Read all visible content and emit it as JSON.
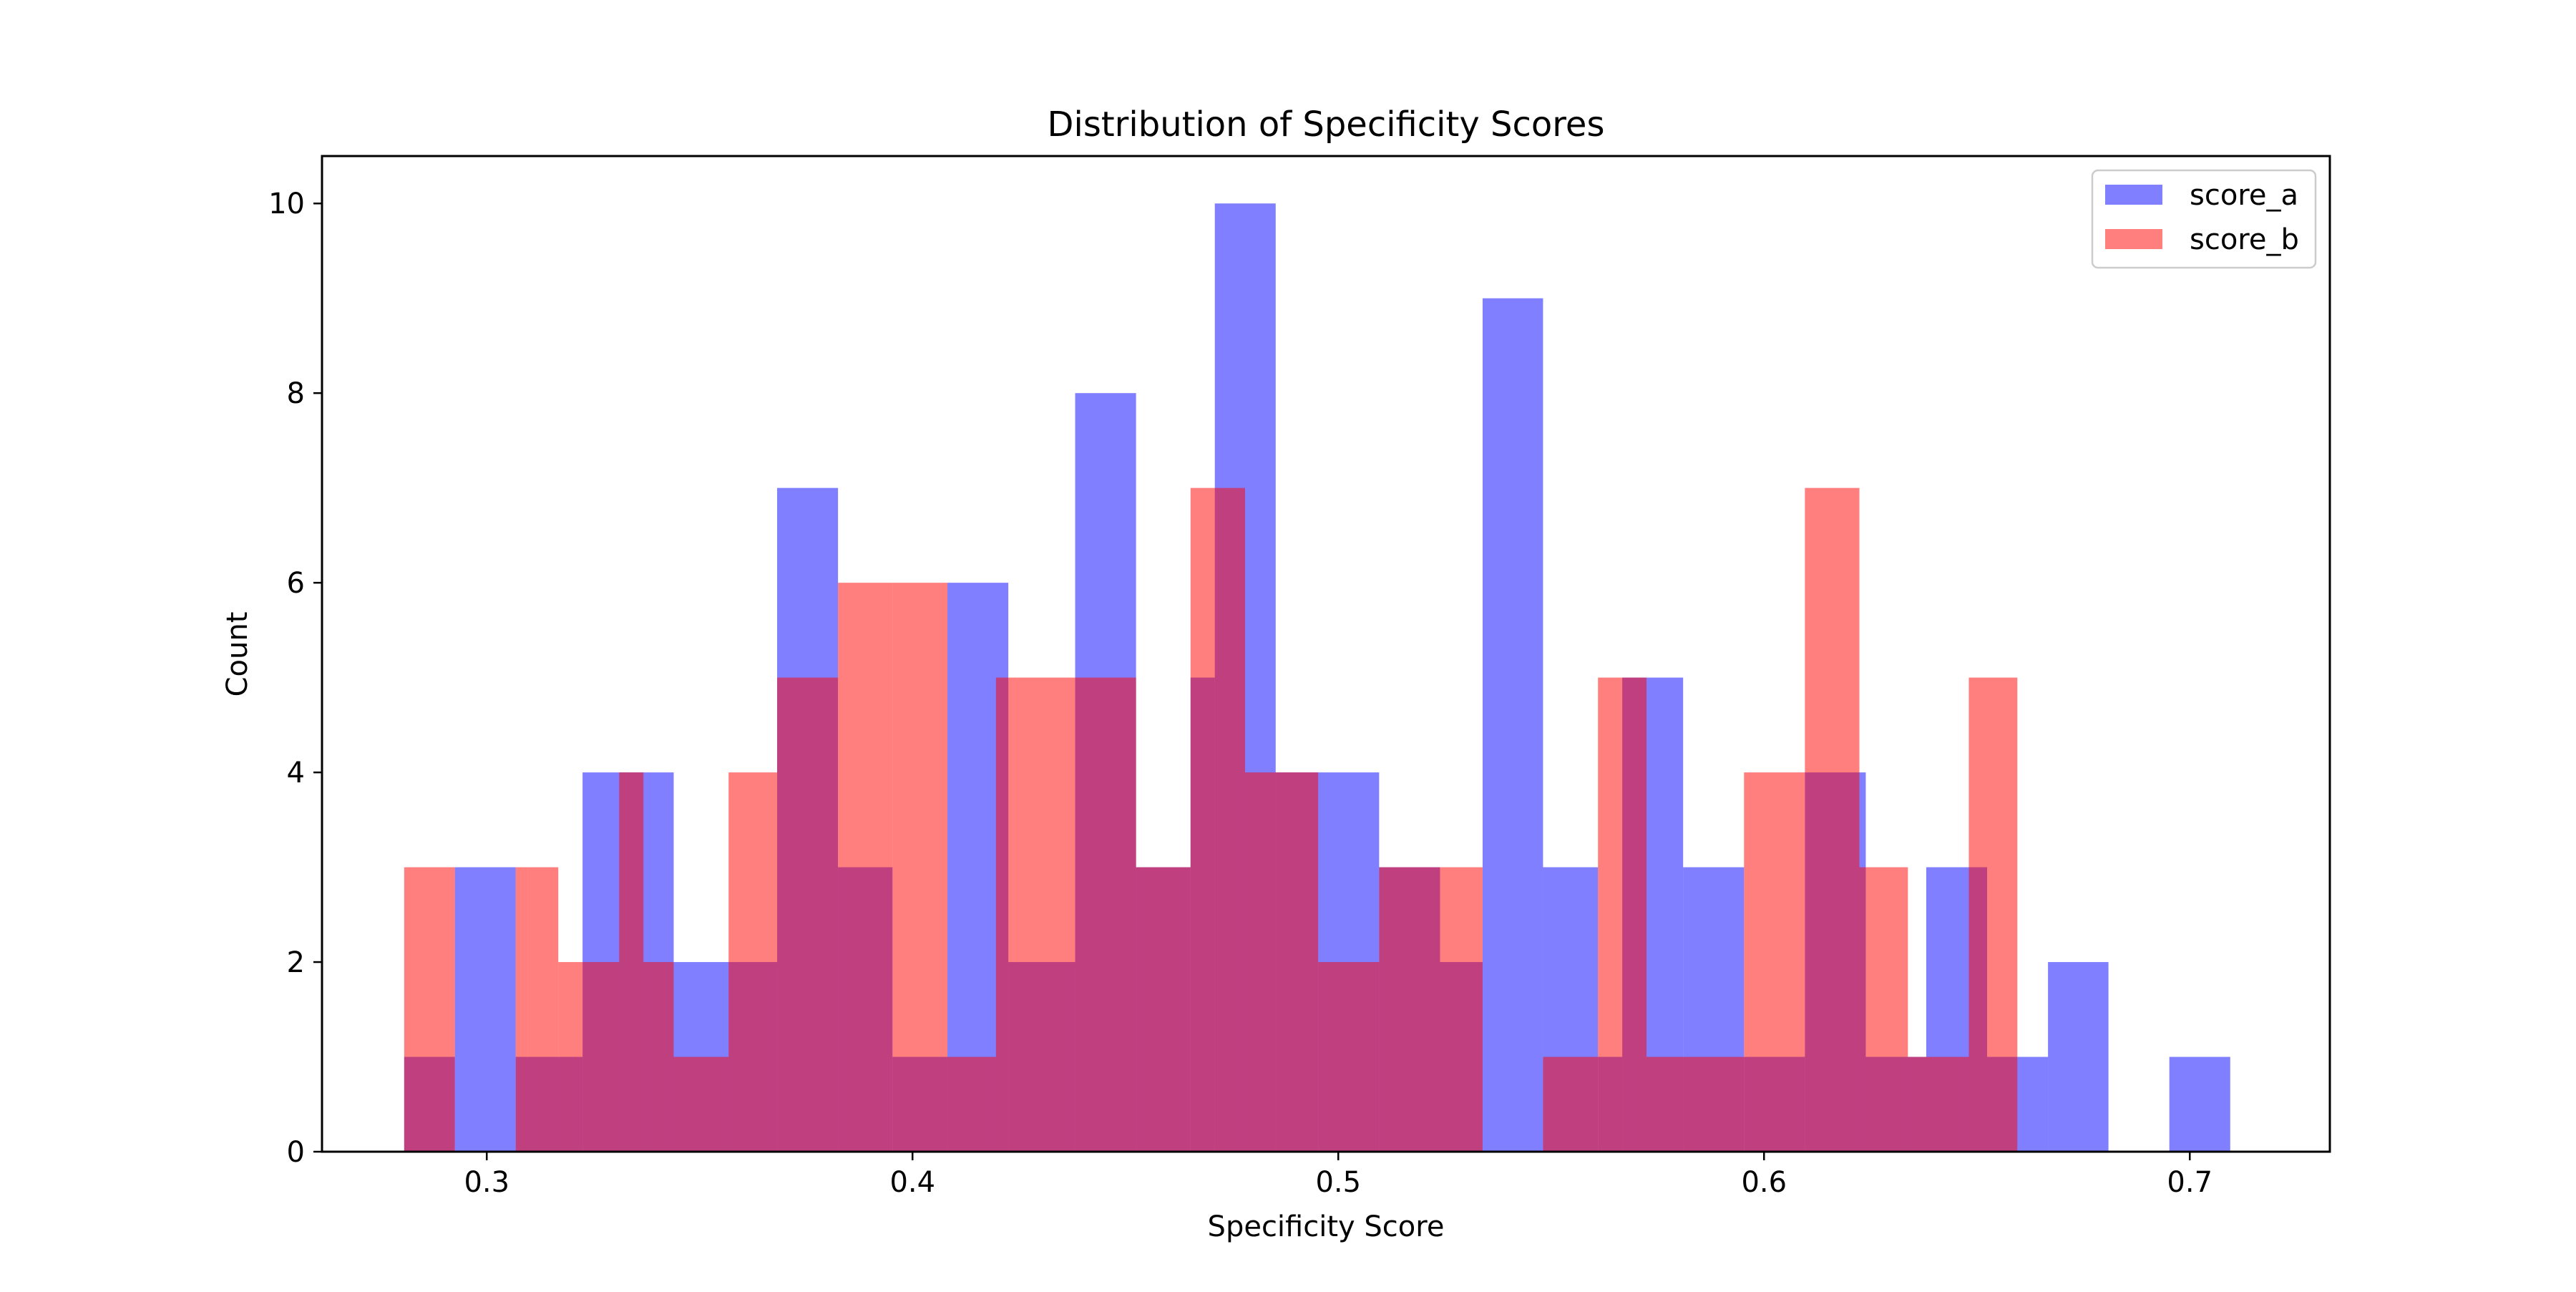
{
  "chart_data": {
    "type": "bar",
    "title": "Distribution of Specificity Scores",
    "xlabel": "Specificity Score",
    "ylabel": "Count",
    "xlim": [
      0.2613,
      0.7329
    ],
    "ylim": [
      0,
      10.5
    ],
    "xticks": [
      0.3,
      0.4,
      0.5,
      0.6,
      0.7
    ],
    "yticks": [
      0,
      2,
      4,
      6,
      8,
      10
    ],
    "grid": false,
    "legend_position": "top-right",
    "series": [
      {
        "name": "score_a",
        "color": "#0000ff",
        "opacity": 0.5,
        "bins": [
          {
            "x0": 0.2806,
            "x1": 0.2925,
            "count": 1
          },
          {
            "x0": 0.2925,
            "x1": 0.3068,
            "count": 3
          },
          {
            "x0": 0.3068,
            "x1": 0.3225,
            "count": 1
          },
          {
            "x0": 0.3225,
            "x1": 0.3297,
            "count": 4
          },
          {
            "x0": 0.3297,
            "x1": 0.3439,
            "count": 4
          },
          {
            "x0": 0.3439,
            "x1": 0.3582,
            "count": 2
          },
          {
            "x0": 0.3582,
            "x1": 0.3682,
            "count": 2
          },
          {
            "x0": 0.3682,
            "x1": 0.3825,
            "count": 7
          },
          {
            "x0": 0.3825,
            "x1": 0.3953,
            "count": 3
          },
          {
            "x0": 0.3953,
            "x1": 0.4082,
            "count": 1
          },
          {
            "x0": 0.4082,
            "x1": 0.4225,
            "count": 6
          },
          {
            "x0": 0.4225,
            "x1": 0.4382,
            "count": 2
          },
          {
            "x0": 0.4382,
            "x1": 0.4525,
            "count": 8
          },
          {
            "x0": 0.4525,
            "x1": 0.4653,
            "count": 3
          },
          {
            "x0": 0.4653,
            "x1": 0.471,
            "count": 5
          },
          {
            "x0": 0.471,
            "x1": 0.4853,
            "count": 10
          },
          {
            "x0": 0.4853,
            "x1": 0.4953,
            "count": 4
          },
          {
            "x0": 0.4953,
            "x1": 0.5096,
            "count": 4
          },
          {
            "x0": 0.5096,
            "x1": 0.5239,
            "count": 3
          },
          {
            "x0": 0.5239,
            "x1": 0.5339,
            "count": 2
          },
          {
            "x0": 0.5339,
            "x1": 0.5481,
            "count": 9
          },
          {
            "x0": 0.5481,
            "x1": 0.561,
            "count": 3
          },
          {
            "x0": 0.561,
            "x1": 0.5667,
            "count": 1
          },
          {
            "x0": 0.5667,
            "x1": 0.581,
            "count": 5
          },
          {
            "x0": 0.581,
            "x1": 0.5953,
            "count": 3
          },
          {
            "x0": 0.5953,
            "x1": 0.6096,
            "count": 1
          },
          {
            "x0": 0.6096,
            "x1": 0.6239,
            "count": 4
          },
          {
            "x0": 0.6239,
            "x1": 0.6381,
            "count": 1
          },
          {
            "x0": 0.6381,
            "x1": 0.6524,
            "count": 3
          },
          {
            "x0": 0.6524,
            "x1": 0.6667,
            "count": 1
          },
          {
            "x0": 0.6667,
            "x1": 0.6809,
            "count": 2
          },
          {
            "x0": 0.6952,
            "x1": 0.7095,
            "count": 1
          }
        ]
      },
      {
        "name": "score_b",
        "color": "#ff0000",
        "opacity": 0.5,
        "bins": [
          {
            "x0": 0.2806,
            "x1": 0.2925,
            "count": 3
          },
          {
            "x0": 0.3068,
            "x1": 0.3096,
            "count": 3
          },
          {
            "x0": 0.3096,
            "x1": 0.3168,
            "count": 3
          },
          {
            "x0": 0.3168,
            "x1": 0.3225,
            "count": 2
          },
          {
            "x0": 0.3225,
            "x1": 0.3311,
            "count": 2
          },
          {
            "x0": 0.3311,
            "x1": 0.3368,
            "count": 4
          },
          {
            "x0": 0.3368,
            "x1": 0.3439,
            "count": 2
          },
          {
            "x0": 0.3439,
            "x1": 0.3568,
            "count": 1
          },
          {
            "x0": 0.3568,
            "x1": 0.3682,
            "count": 4
          },
          {
            "x0": 0.3682,
            "x1": 0.3825,
            "count": 5
          },
          {
            "x0": 0.3825,
            "x1": 0.3953,
            "count": 6
          },
          {
            "x0": 0.3953,
            "x1": 0.4082,
            "count": 6
          },
          {
            "x0": 0.4082,
            "x1": 0.4196,
            "count": 1
          },
          {
            "x0": 0.4196,
            "x1": 0.4239,
            "count": 5
          },
          {
            "x0": 0.4239,
            "x1": 0.4382,
            "count": 5
          },
          {
            "x0": 0.4382,
            "x1": 0.4525,
            "count": 5
          },
          {
            "x0": 0.4525,
            "x1": 0.4653,
            "count": 3
          },
          {
            "x0": 0.4653,
            "x1": 0.4781,
            "count": 7
          },
          {
            "x0": 0.4781,
            "x1": 0.4953,
            "count": 4
          },
          {
            "x0": 0.4953,
            "x1": 0.5096,
            "count": 2
          },
          {
            "x0": 0.5096,
            "x1": 0.5239,
            "count": 3
          },
          {
            "x0": 0.5239,
            "x1": 0.5339,
            "count": 3
          },
          {
            "x0": 0.5339,
            "x1": 0.5481,
            "count": 0
          },
          {
            "x0": 0.5481,
            "x1": 0.561,
            "count": 1
          },
          {
            "x0": 0.561,
            "x1": 0.5681,
            "count": 5
          },
          {
            "x0": 0.5681,
            "x1": 0.5724,
            "count": 5
          },
          {
            "x0": 0.5724,
            "x1": 0.5953,
            "count": 1
          },
          {
            "x0": 0.5953,
            "x1": 0.6096,
            "count": 4
          },
          {
            "x0": 0.6096,
            "x1": 0.6224,
            "count": 7
          },
          {
            "x0": 0.6224,
            "x1": 0.6338,
            "count": 3
          },
          {
            "x0": 0.6338,
            "x1": 0.6481,
            "count": 1
          },
          {
            "x0": 0.6481,
            "x1": 0.6595,
            "count": 5
          }
        ]
      }
    ]
  }
}
